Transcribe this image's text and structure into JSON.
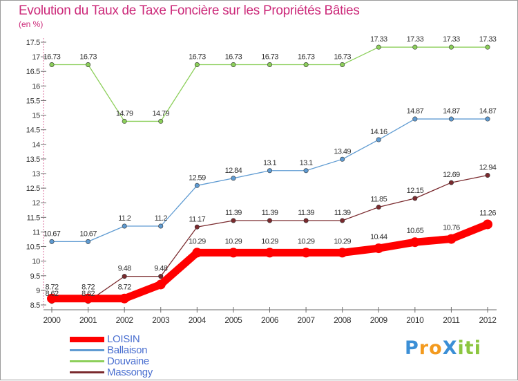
{
  "page": {
    "title": "Evolution du Taux de Taxe Foncière sur les Propriétés Bâties",
    "unit": "(en %)"
  },
  "chart_data": {
    "type": "line",
    "title": "Evolution du Taux de Taxe Foncière sur les Propriétés Bâties",
    "ylabel": "(en %)",
    "xlabel": "",
    "x": [
      "2000",
      "2001",
      "2002",
      "2003",
      "2004",
      "2005",
      "2006",
      "2007",
      "2008",
      "2009",
      "2010",
      "2011",
      "2012"
    ],
    "ylim": [
      8.5,
      17.5
    ],
    "ytick_step": 0.5,
    "yticks": [
      "8.5",
      "9",
      "9.5",
      "10",
      "10.5",
      "11",
      "11.5",
      "12",
      "12.5",
      "13",
      "13.5",
      "14",
      "14.5",
      "15",
      "15.5",
      "16",
      "16.5",
      "17",
      "17.5"
    ],
    "grid": false,
    "legend_position": "bottom-left",
    "series": [
      {
        "name": "LOISIN",
        "color": "#ff0000",
        "emphasis": true,
        "values": [
          8.72,
          8.72,
          8.72,
          9.2,
          10.29,
          10.29,
          10.29,
          10.29,
          10.29,
          10.44,
          10.65,
          10.76,
          11.26
        ],
        "labels": [
          "8.72",
          "8.72",
          "8.72",
          "",
          "10.29",
          "10.29",
          "10.29",
          "10.29",
          "10.29",
          "10.44",
          "10.65",
          "10.76",
          "11.26"
        ]
      },
      {
        "name": "Ballaison",
        "color": "#5f9bd2",
        "values": [
          10.67,
          10.67,
          11.2,
          11.2,
          12.59,
          12.84,
          13.1,
          13.1,
          13.49,
          14.16,
          14.87,
          14.87,
          14.87
        ],
        "labels": [
          "10.67",
          "10.67",
          "11.2",
          "11.2",
          "12.59",
          "12.84",
          "13.1",
          "13.1",
          "13.49",
          "14.16",
          "14.87",
          "14.87",
          "14.87"
        ]
      },
      {
        "name": "Douvaine",
        "color": "#8ccf5a",
        "values": [
          16.73,
          16.73,
          14.79,
          14.79,
          16.73,
          16.73,
          16.73,
          16.73,
          16.73,
          17.33,
          17.33,
          17.33,
          17.33
        ],
        "labels": [
          "16.73",
          "16.73",
          "14.79",
          "14.79",
          "16.73",
          "16.73",
          "16.73",
          "16.73",
          "16.73",
          "17.33",
          "17.33",
          "17.33",
          "17.33"
        ]
      },
      {
        "name": "Massongy",
        "color": "#7a2a2e",
        "values": [
          8.62,
          8.62,
          9.48,
          9.48,
          11.17,
          11.39,
          11.39,
          11.39,
          11.39,
          11.85,
          12.15,
          12.69,
          12.94
        ],
        "labels": [
          "8.62",
          "8.62",
          "9.48",
          "9.48",
          "11.17",
          "11.39",
          "11.39",
          "11.39",
          "11.39",
          "11.85",
          "12.15",
          "12.69",
          "12.94"
        ]
      }
    ]
  },
  "logo": {
    "text": "ProXiti",
    "letters": [
      "P",
      "r",
      "o",
      "X",
      "i",
      "t",
      "i"
    ],
    "colors": [
      "#3b8fd6",
      "#f39a1e",
      "#f39a1e",
      "#3b8fd6",
      "#8cc63f",
      "#8cc63f",
      "#8cc63f"
    ]
  }
}
